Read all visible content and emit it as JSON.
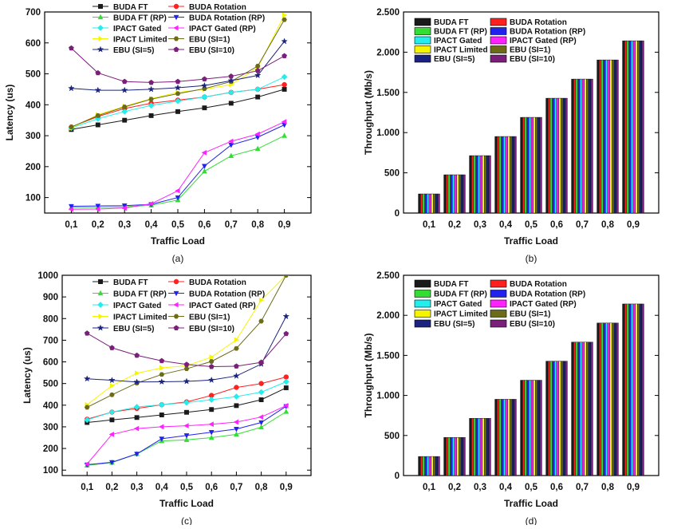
{
  "colors": {
    "BUDA FT": "#1a1a1a",
    "BUDA Rotation": "#ff2020",
    "BUDA FT (RP)": "#33dd33",
    "BUDA Rotation (RP)": "#2222ee",
    "IPACT Gated": "#22eeee",
    "IPACT Gated (RP)": "#ff22ff",
    "IPACT Limited": "#f5f500",
    "EBU (SI=1)": "#6b6b1a",
    "EBU (SI=5)": "#1a237e",
    "EBU (SI=10)": "#7a1f7a"
  },
  "markers": {
    "BUDA FT": "square",
    "BUDA Rotation": "circle",
    "BUDA FT (RP)": "triangle-up",
    "BUDA Rotation (RP)": "triangle-down",
    "IPACT Gated": "diamond",
    "IPACT Gated (RP)": "triangle-left",
    "IPACT Limited": "triangle-right",
    "EBU (SI=1)": "hexagon",
    "EBU (SI=5)": "star",
    "EBU (SI=10)": "pentagon"
  },
  "chart_data": [
    {
      "id": "a",
      "caption": "(a)",
      "type": "line",
      "xlabel": "Traffic Load",
      "ylabel": "Latency (us)",
      "categories": [
        "0,1",
        "0,2",
        "0,3",
        "0,4",
        "0,5",
        "0,6",
        "0,7",
        "0,8",
        "0,9"
      ],
      "ylim": [
        50,
        700
      ],
      "yticks": [
        100,
        200,
        300,
        400,
        500,
        600,
        700
      ],
      "ytick_labels": [
        "100",
        "200",
        "300",
        "400",
        "500",
        "600",
        "700"
      ],
      "legend_position": "top",
      "series": [
        {
          "name": "BUDA FT",
          "values": [
            320,
            335,
            350,
            365,
            378,
            390,
            405,
            425,
            450
          ]
        },
        {
          "name": "BUDA Rotation",
          "values": [
            328,
            362,
            388,
            405,
            415,
            425,
            440,
            450,
            465
          ]
        },
        {
          "name": "BUDA FT (RP)",
          "values": [
            68,
            68,
            70,
            75,
            92,
            185,
            235,
            258,
            300
          ]
        },
        {
          "name": "BUDA Rotation (RP)",
          "values": [
            72,
            73,
            74,
            78,
            100,
            202,
            270,
            295,
            335
          ]
        },
        {
          "name": "IPACT Gated",
          "values": [
            325,
            355,
            378,
            398,
            412,
            425,
            440,
            450,
            490
          ]
        },
        {
          "name": "IPACT Gated (RP)",
          "values": [
            62,
            63,
            66,
            80,
            122,
            245,
            282,
            305,
            345
          ]
        },
        {
          "name": "IPACT Limited",
          "values": [
            325,
            368,
            395,
            420,
            440,
            450,
            465,
            520,
            690
          ]
        },
        {
          "name": "EBU (SI=1)",
          "values": [
            328,
            365,
            393,
            418,
            436,
            452,
            475,
            525,
            675
          ]
        },
        {
          "name": "EBU (SI=5)",
          "values": [
            453,
            447,
            447,
            450,
            455,
            462,
            478,
            495,
            605
          ]
        },
        {
          "name": "EBU (SI=10)",
          "values": [
            583,
            503,
            475,
            472,
            475,
            483,
            492,
            510,
            558
          ]
        }
      ]
    },
    {
      "id": "b",
      "caption": "(b)",
      "type": "bar",
      "xlabel": "Traffic Load",
      "ylabel": "Throughput (Mb/s)",
      "categories": [
        "0,1",
        "0,2",
        "0,3",
        "0,4",
        "0,5",
        "0,6",
        "0,7",
        "0,8",
        "0,9"
      ],
      "ylim": [
        0,
        2500
      ],
      "yticks": [
        0,
        500,
        1000,
        1500,
        2000,
        2500
      ],
      "ytick_labels": [
        "0",
        "500",
        "1.000",
        "1.500",
        "2.000",
        "2.500"
      ],
      "legend_position": "top-left",
      "series": [
        {
          "name": "BUDA FT",
          "values": [
            238,
            476,
            714,
            952,
            1190,
            1428,
            1666,
            1904,
            2142
          ]
        },
        {
          "name": "BUDA Rotation",
          "values": [
            238,
            476,
            714,
            952,
            1190,
            1428,
            1666,
            1904,
            2142
          ]
        },
        {
          "name": "BUDA FT (RP)",
          "values": [
            238,
            476,
            714,
            952,
            1190,
            1428,
            1666,
            1904,
            2142
          ]
        },
        {
          "name": "BUDA Rotation (RP)",
          "values": [
            238,
            476,
            714,
            952,
            1190,
            1428,
            1666,
            1904,
            2142
          ]
        },
        {
          "name": "IPACT Gated",
          "values": [
            238,
            476,
            714,
            952,
            1190,
            1428,
            1666,
            1904,
            2142
          ]
        },
        {
          "name": "IPACT Gated (RP)",
          "values": [
            238,
            476,
            714,
            952,
            1190,
            1428,
            1666,
            1904,
            2142
          ]
        },
        {
          "name": "IPACT Limited",
          "values": [
            238,
            476,
            714,
            952,
            1190,
            1428,
            1666,
            1904,
            2142
          ]
        },
        {
          "name": "EBU (SI=1)",
          "values": [
            238,
            476,
            714,
            952,
            1190,
            1428,
            1666,
            1904,
            2142
          ]
        },
        {
          "name": "EBU (SI=5)",
          "values": [
            238,
            476,
            714,
            952,
            1190,
            1428,
            1666,
            1904,
            2142
          ]
        },
        {
          "name": "EBU (SI=10)",
          "values": [
            238,
            476,
            714,
            952,
            1190,
            1428,
            1666,
            1904,
            2142
          ]
        }
      ]
    },
    {
      "id": "c",
      "caption": "(c)",
      "type": "line",
      "xlabel": "Traffic Load",
      "ylabel": "Latency (us)",
      "categories": [
        "0,1",
        "0,2",
        "0,3",
        "0,4",
        "0,5",
        "0,6",
        "0,7",
        "0,8",
        "0,9"
      ],
      "ylim": [
        75,
        1000
      ],
      "yticks": [
        100,
        200,
        300,
        400,
        500,
        600,
        700,
        800,
        900,
        1000
      ],
      "ytick_labels": [
        "100",
        "200",
        "300",
        "400",
        "500",
        "600",
        "700",
        "800",
        "900",
        "1000"
      ],
      "legend_position": "top",
      "series": [
        {
          "name": "BUDA FT",
          "values": [
            320,
            332,
            343,
            355,
            367,
            380,
            398,
            425,
            480
          ]
        },
        {
          "name": "BUDA Rotation",
          "values": [
            335,
            368,
            385,
            402,
            415,
            445,
            482,
            500,
            530
          ]
        },
        {
          "name": "BUDA FT (RP)",
          "values": [
            122,
            135,
            175,
            235,
            240,
            250,
            265,
            298,
            370
          ]
        },
        {
          "name": "BUDA Rotation (RP)",
          "values": [
            125,
            136,
            175,
            245,
            260,
            275,
            290,
            320,
            395
          ]
        },
        {
          "name": "IPACT Gated",
          "values": [
            332,
            368,
            392,
            402,
            412,
            425,
            440,
            460,
            508
          ]
        },
        {
          "name": "IPACT Gated (RP)",
          "values": [
            128,
            265,
            292,
            300,
            305,
            312,
            322,
            345,
            398
          ]
        },
        {
          "name": "IPACT Limited",
          "values": [
            402,
            490,
            548,
            572,
            582,
            622,
            702,
            885,
            1000
          ]
        },
        {
          "name": "EBU (SI=1)",
          "values": [
            390,
            448,
            502,
            542,
            568,
            602,
            662,
            788,
            1000
          ]
        },
        {
          "name": "EBU (SI=5)",
          "values": [
            522,
            515,
            507,
            508,
            510,
            516,
            535,
            590,
            810
          ]
        },
        {
          "name": "EBU (SI=10)",
          "values": [
            732,
            665,
            630,
            605,
            588,
            578,
            580,
            598,
            730
          ]
        }
      ]
    },
    {
      "id": "d",
      "caption": "(d)",
      "type": "bar",
      "xlabel": "Traffic Load",
      "ylabel": "Throughput (Mb/s)",
      "categories": [
        "0,1",
        "0,2",
        "0,3",
        "0,4",
        "0,5",
        "0,6",
        "0,7",
        "0,8",
        "0,9"
      ],
      "ylim": [
        0,
        2500
      ],
      "yticks": [
        0,
        500,
        1000,
        1500,
        2000,
        2500
      ],
      "ytick_labels": [
        "0",
        "500",
        "1.000",
        "1.500",
        "2.000",
        "2.500"
      ],
      "legend_position": "top-left",
      "series": [
        {
          "name": "BUDA FT",
          "values": [
            238,
            476,
            714,
            952,
            1190,
            1428,
            1666,
            1904,
            2142
          ]
        },
        {
          "name": "BUDA Rotation",
          "values": [
            238,
            476,
            714,
            952,
            1190,
            1428,
            1666,
            1904,
            2142
          ]
        },
        {
          "name": "BUDA FT (RP)",
          "values": [
            238,
            476,
            714,
            952,
            1190,
            1428,
            1666,
            1904,
            2142
          ]
        },
        {
          "name": "BUDA Rotation (RP)",
          "values": [
            238,
            476,
            714,
            952,
            1190,
            1428,
            1666,
            1904,
            2142
          ]
        },
        {
          "name": "IPACT Gated",
          "values": [
            238,
            476,
            714,
            952,
            1190,
            1428,
            1666,
            1904,
            2142
          ]
        },
        {
          "name": "IPACT Gated (RP)",
          "values": [
            238,
            476,
            714,
            952,
            1190,
            1428,
            1666,
            1904,
            2142
          ]
        },
        {
          "name": "IPACT Limited",
          "values": [
            238,
            476,
            714,
            952,
            1190,
            1428,
            1666,
            1904,
            2142
          ]
        },
        {
          "name": "EBU (SI=1)",
          "values": [
            238,
            476,
            714,
            952,
            1190,
            1428,
            1666,
            1904,
            2142
          ]
        },
        {
          "name": "EBU (SI=5)",
          "values": [
            238,
            476,
            714,
            952,
            1190,
            1428,
            1666,
            1904,
            2142
          ]
        },
        {
          "name": "EBU (SI=10)",
          "values": [
            238,
            476,
            714,
            952,
            1190,
            1428,
            1666,
            1904,
            2142
          ]
        }
      ]
    }
  ]
}
